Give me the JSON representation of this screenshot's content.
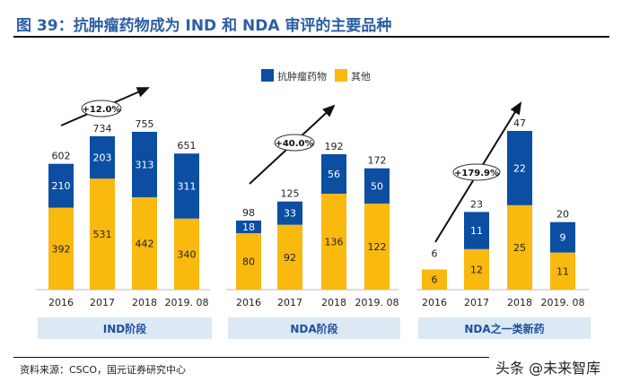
{
  "title": "图 39：抗肿瘤药物成为 IND 和 NDA 审评的主要品种",
  "source": "资料来源：CSCO，国元证券研究中心",
  "watermark": "头条 @未来智库",
  "colors": {
    "antitumor": "#0b4ea2",
    "other": "#f9b90f",
    "panel_label_bg": "#dce9f5",
    "title": "#2b5fa6"
  },
  "chart_data": [
    {
      "type": "bar",
      "stacked": true,
      "panel_label": "IND阶段",
      "categories": [
        "2016",
        "2017",
        "2018",
        "2019. 08"
      ],
      "series": [
        {
          "name": "其他",
          "values": [
            392,
            531,
            442,
            340
          ]
        },
        {
          "name": "抗肿瘤药物",
          "values": [
            210,
            203,
            313,
            311
          ]
        }
      ],
      "totals": [
        602,
        734,
        755,
        651
      ],
      "annotation": "+12.0%",
      "legend": [
        "抗肿瘤药物",
        "其他"
      ],
      "legend_position": "top"
    },
    {
      "type": "bar",
      "stacked": true,
      "panel_label": "NDA阶段",
      "categories": [
        "2016",
        "2017",
        "2018",
        "2019. 08"
      ],
      "series": [
        {
          "name": "其他",
          "values": [
            80,
            92,
            136,
            122
          ]
        },
        {
          "name": "抗肿瘤药物",
          "values": [
            18,
            33,
            56,
            50
          ]
        }
      ],
      "totals": [
        98,
        125,
        192,
        172
      ],
      "annotation": "+40.0%"
    },
    {
      "type": "bar",
      "stacked": true,
      "panel_label": "NDA之一类新药",
      "categories": [
        "2016",
        "2017",
        "2018",
        "2019. 08"
      ],
      "series": [
        {
          "name": "其他",
          "values": [
            6,
            12,
            25,
            11
          ]
        },
        {
          "name": "抗肿瘤药物",
          "values": [
            0,
            11,
            22,
            9
          ]
        }
      ],
      "totals": [
        6,
        23,
        47,
        20
      ],
      "annotation": "+179.9%"
    }
  ]
}
